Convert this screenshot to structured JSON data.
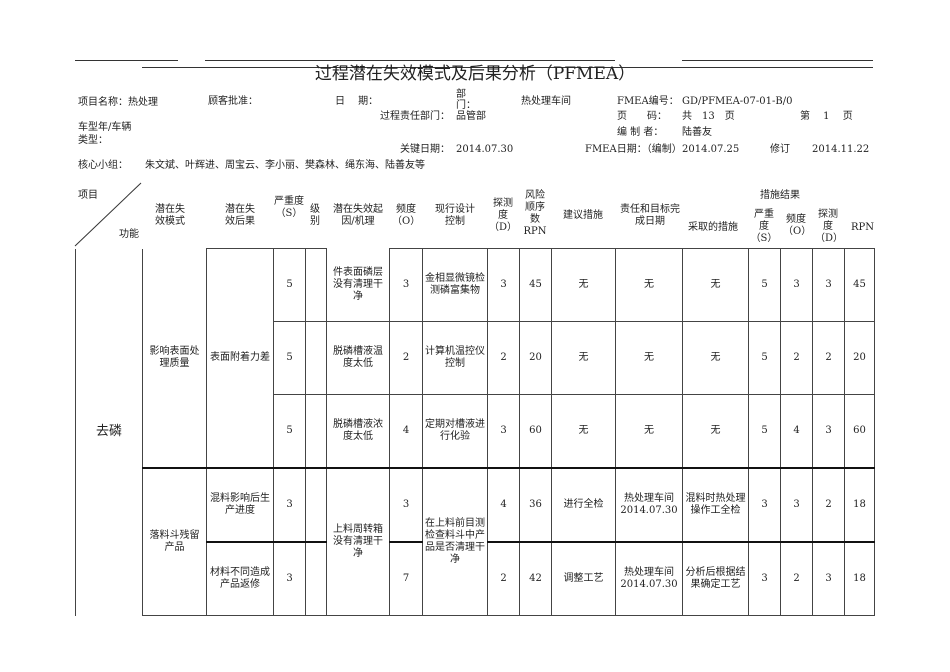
{
  "title": "过程潜在失效模式及后果分析（PFMEA）",
  "info": {
    "project_label": "项目名称：热处理",
    "customer_approval_label": "顾客批准：",
    "date_label": "日　 期：",
    "dept_label": "部门：",
    "dept_value": "热处理车间",
    "fmea_no_label": "FMEA编号：",
    "fmea_no_value": "GD/PFMEA-07-01-B/0",
    "process_dept_label": "过程责任部门：",
    "process_dept_value": "品管部",
    "page_label": "页　　码：",
    "page_total": "共　13　页",
    "page_current": "第　 1　 页",
    "vehicle_label_1": "车型年/车辆",
    "vehicle_label_2": "类型：",
    "prepared_by_label": "编 制 者：",
    "prepared_by_value": "陆善友",
    "key_date_label": "关键日期：",
    "key_date_value": "2014.07.30",
    "fmea_date_label": "FMEA日期：（编制）",
    "fmea_date_value": "2014.07.25",
    "revision_label": "修订",
    "revision_value": "2014.11.22",
    "team_label": "核心小组：",
    "team_value": "朱文斌、叶辉进、周宝云、李小丽、樊森林、绳东海、陆善友等"
  },
  "headers": {
    "item": "项目",
    "function": "功能",
    "failure_mode": "潜在失效模式",
    "effect": "潜在失效后果",
    "severity": "严重度（S）",
    "class": "级别",
    "cause": "潜在失效起因/机理",
    "occurrence": "频度（O）",
    "control": "现行设计控制",
    "detection": "探测度（D）",
    "rpn": "风险顺序数RPN",
    "recommended": "建议措施",
    "responsibility": "责任和目标完成日期",
    "results": "措施结果",
    "actions_taken": "采取的措施",
    "r_severity": "严重度（S）",
    "r_occurrence": "频度（O）",
    "r_detection": "探测度（D）",
    "r_rpn": "RPN"
  },
  "function": "去磷",
  "groups": [
    {
      "mode": "影响表面处理质量",
      "effect": "表面附着力差",
      "rows": [
        {
          "s": "5",
          "cause": "件表面磷层没有清理干净",
          "o": "3",
          "control": "金相显微镜检测磷富集物",
          "d": "3",
          "rpn": "45",
          "rec": "无",
          "resp": "无",
          "taken": "无",
          "rs": "5",
          "ro": "3",
          "rd": "3",
          "rrpn": "45"
        },
        {
          "s": "5",
          "cause": "脱磷槽液温度太低",
          "o": "2",
          "control": "计算机温控仪控制",
          "d": "2",
          "rpn": "20",
          "rec": "无",
          "resp": "无",
          "taken": "无",
          "rs": "5",
          "ro": "2",
          "rd": "2",
          "rrpn": "20"
        },
        {
          "s": "5",
          "cause": "脱磷槽液浓度太低",
          "o": "4",
          "control": "定期对槽液进行化验",
          "d": "3",
          "rpn": "60",
          "rec": "无",
          "resp": "无",
          "taken": "无",
          "rs": "5",
          "ro": "4",
          "rd": "3",
          "rrpn": "60"
        }
      ]
    },
    {
      "mode": "落料斗残留产品",
      "cause": "上料周转箱没有清理干净",
      "control": "在上料前目测检查料斗中产品是否清理干净",
      "rows": [
        {
          "effect": "混料影响后生产进度",
          "s": "3",
          "o": "3",
          "d": "4",
          "rpn": "36",
          "rec": "进行全检",
          "resp": "热处理车间2014.07.30",
          "taken": "混料时热处理操作工全检",
          "rs": "3",
          "ro": "3",
          "rd": "2",
          "rrpn": "18"
        },
        {
          "effect": "材料不同造成产品返修",
          "s": "3",
          "o": "7",
          "d": "2",
          "rpn": "42",
          "rec": "调整工艺",
          "resp": "热处理车间2014.07.30",
          "taken": "分析后根据结果确定工艺",
          "rs": "3",
          "ro": "2",
          "rd": "3",
          "rrpn": "18"
        }
      ]
    }
  ]
}
